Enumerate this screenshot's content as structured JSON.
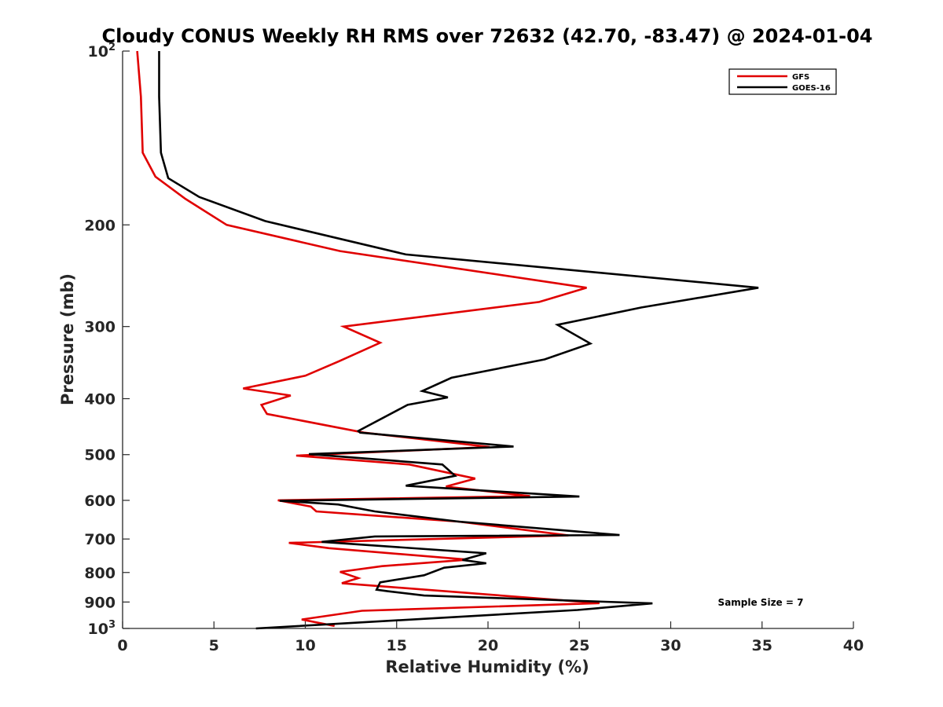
{
  "chart_data": {
    "type": "line",
    "title": "Cloudy CONUS Weekly RH RMS over 72632 (42.70, -83.47) @ 2024-01-04",
    "xlabel": "Relative Humidity (%)",
    "ylabel": "Pressure (mb)",
    "xlim": [
      0,
      40
    ],
    "ylim": [
      100,
      1000
    ],
    "y_scale": "log",
    "y_reversed": true,
    "x_ticks": [
      "0",
      "5",
      "10",
      "15",
      "20",
      "25",
      "30",
      "35",
      "40"
    ],
    "y_ticks": [
      {
        "value": 100,
        "base": "10",
        "sup": "2"
      },
      {
        "value": 200,
        "base": "200",
        "sup": ""
      },
      {
        "value": 300,
        "base": "300",
        "sup": ""
      },
      {
        "value": 400,
        "base": "400",
        "sup": ""
      },
      {
        "value": 500,
        "base": "500",
        "sup": ""
      },
      {
        "value": 600,
        "base": "600",
        "sup": ""
      },
      {
        "value": 700,
        "base": "700",
        "sup": ""
      },
      {
        "value": 800,
        "base": "800",
        "sup": ""
      },
      {
        "value": 900,
        "base": "900",
        "sup": ""
      },
      {
        "value": 1000,
        "base": "10",
        "sup": "3"
      }
    ],
    "grid": false,
    "legend_position": "top-right",
    "annotation": "Sample Size = 7",
    "series": [
      {
        "name": "GFS",
        "color": "#e00000",
        "x": [
          0.8,
          1.0,
          1.1,
          1.8,
          3.4,
          5.7,
          11.9,
          25.4,
          22.8,
          12.1,
          14.1,
          11.8,
          10.0,
          6.6,
          9.2,
          7.6,
          7.9,
          13.2,
          20.1,
          9.5,
          15.7,
          19.3,
          17.7,
          22.3,
          8.5,
          10.3,
          10.6,
          18.4,
          24.4,
          9.1,
          11.3,
          18.9,
          14.2,
          11.9,
          12.9,
          12.0,
          26.1,
          13.1,
          9.8,
          11.6
        ],
        "y": [
          100,
          120,
          150,
          165,
          180,
          200,
          222,
          257,
          272,
          300,
          320,
          345,
          365,
          384,
          395,
          410,
          425,
          458,
          485,
          502,
          520,
          550,
          568,
          590,
          600,
          615,
          627,
          653,
          690,
          711,
          726,
          760,
          780,
          798,
          818,
          835,
          904,
          932,
          965,
          990
        ]
      },
      {
        "name": "GOES-16",
        "color": "#000000",
        "x": [
          2.0,
          2.0,
          2.1,
          2.5,
          4.2,
          7.8,
          15.5,
          34.8,
          28.4,
          23.8,
          25.6,
          23.1,
          18.0,
          16.4,
          17.8,
          15.6,
          12.9,
          13.0,
          21.4,
          10.2,
          17.5,
          18.2,
          15.5,
          25.0,
          8.6,
          11.8,
          13.8,
          18.4,
          27.2,
          13.8,
          10.9,
          19.9,
          18.6,
          19.9,
          17.6,
          16.5,
          14.1,
          13.9,
          14.5,
          16.5,
          29.0,
          24.9,
          7.3
        ],
        "y": [
          100,
          120,
          150,
          166,
          179,
          197,
          225,
          257,
          278,
          298,
          321,
          342,
          368,
          388,
          398,
          410,
          455,
          458,
          484,
          499,
          520,
          544,
          566,
          591,
          601,
          610,
          627,
          653,
          689,
          693,
          708,
          741,
          761,
          771,
          785,
          809,
          832,
          857,
          862,
          877,
          905,
          929,
          1000
        ]
      }
    ]
  }
}
